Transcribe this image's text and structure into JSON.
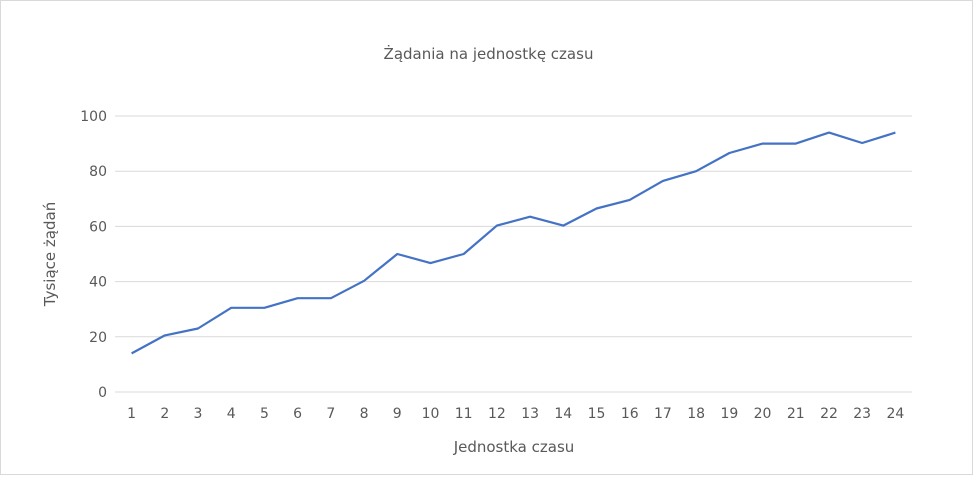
{
  "chart_data": {
    "type": "line",
    "title": "Żądania na jednostkę czasu",
    "xlabel": "Jednostka czasu",
    "ylabel": "Tysiące żądań",
    "categories": [
      "1",
      "2",
      "3",
      "4",
      "5",
      "6",
      "7",
      "8",
      "9",
      "10",
      "11",
      "12",
      "13",
      "14",
      "15",
      "16",
      "17",
      "18",
      "19",
      "20",
      "21",
      "22",
      "23",
      "24"
    ],
    "series": [
      {
        "name": "Tysiące żądań",
        "color": "#4472c4",
        "values": [
          14,
          20.5,
          23,
          30.5,
          30.5,
          34,
          34,
          40.3,
          50,
          46.7,
          50,
          60.3,
          63.5,
          60.3,
          66.5,
          69.6,
          76.5,
          80,
          86.6,
          90,
          90,
          94,
          90.2,
          94
        ]
      }
    ],
    "ylim": [
      0,
      100
    ],
    "yticks": [
      "0",
      "20",
      "40",
      "60",
      "80",
      "100"
    ],
    "grid": true,
    "legend": "none"
  }
}
